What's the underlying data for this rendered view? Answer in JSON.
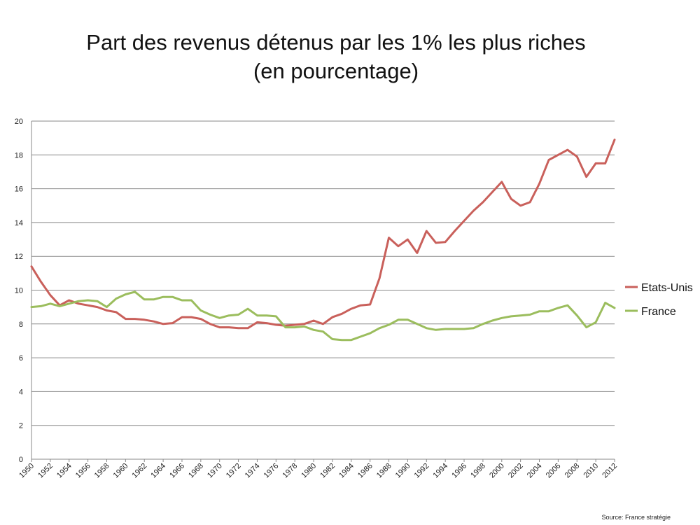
{
  "chart_data": {
    "type": "line",
    "title": "Part des revenus détenus par les 1% les plus riches",
    "subtitle": "(en pourcentage)",
    "xlabel": "",
    "ylabel": "",
    "ylim": [
      0,
      20
    ],
    "yticks": [
      0,
      2,
      4,
      6,
      8,
      10,
      12,
      14,
      16,
      18,
      20
    ],
    "xlim": [
      1950,
      2012
    ],
    "x_tick_labels": [
      "1950",
      "1952",
      "1954",
      "1956",
      "1958",
      "1960",
      "1962",
      "1964",
      "1966",
      "1968",
      "1970",
      "1972",
      "1974",
      "1976",
      "1978",
      "1980",
      "1982",
      "1984",
      "1986",
      "1988",
      "1990",
      "1992",
      "1994",
      "1996",
      "1998",
      "2000",
      "2002",
      "2004",
      "2006",
      "2008",
      "2010",
      "2012"
    ],
    "grid": true,
    "legend_position": "right",
    "x": [
      1950,
      1951,
      1952,
      1953,
      1954,
      1955,
      1956,
      1957,
      1958,
      1959,
      1960,
      1961,
      1962,
      1963,
      1964,
      1965,
      1966,
      1967,
      1968,
      1969,
      1970,
      1971,
      1972,
      1973,
      1974,
      1975,
      1976,
      1977,
      1978,
      1979,
      1980,
      1981,
      1982,
      1983,
      1984,
      1985,
      1986,
      1987,
      1988,
      1989,
      1990,
      1991,
      1992,
      1993,
      1994,
      1995,
      1996,
      1997,
      1998,
      1999,
      2000,
      2001,
      2002,
      2003,
      2004,
      2005,
      2006,
      2007,
      2008,
      2009,
      2010,
      2011,
      2012
    ],
    "series": [
      {
        "name": "Etats-Unis",
        "color": "#c9605b",
        "values": [
          11.4,
          10.5,
          9.7,
          9.1,
          9.4,
          9.2,
          9.1,
          9.0,
          8.8,
          8.7,
          8.3,
          8.3,
          8.25,
          8.15,
          8.0,
          8.05,
          8.4,
          8.4,
          8.3,
          8.0,
          7.8,
          7.8,
          7.75,
          7.75,
          8.1,
          8.05,
          7.95,
          7.9,
          7.95,
          8.0,
          8.2,
          8.0,
          8.4,
          8.6,
          8.9,
          9.1,
          9.15,
          10.7,
          13.1,
          12.6,
          13.0,
          12.2,
          13.5,
          12.8,
          12.85,
          13.5,
          14.1,
          14.7,
          15.2,
          15.8,
          16.4,
          15.4,
          15.0,
          15.2,
          16.3,
          17.7,
          18.0,
          18.3,
          17.9,
          16.7,
          17.5,
          17.5,
          18.9
        ]
      },
      {
        "name": "France",
        "color": "#9bbd5d",
        "values": [
          9.0,
          9.05,
          9.2,
          9.05,
          9.2,
          9.35,
          9.4,
          9.35,
          9.0,
          9.5,
          9.75,
          9.9,
          9.45,
          9.45,
          9.6,
          9.6,
          9.4,
          9.4,
          8.8,
          8.55,
          8.35,
          8.5,
          8.55,
          8.9,
          8.5,
          8.5,
          8.45,
          7.8,
          7.8,
          7.85,
          7.65,
          7.55,
          7.1,
          7.05,
          7.05,
          7.25,
          7.45,
          7.75,
          7.95,
          8.25,
          8.25,
          8.0,
          7.75,
          7.65,
          7.7,
          7.7,
          7.7,
          7.75,
          8.0,
          8.2,
          8.35,
          8.45,
          8.5,
          8.55,
          8.75,
          8.75,
          8.95,
          9.1,
          8.5,
          7.8,
          8.1,
          9.25,
          8.95
        ]
      }
    ],
    "source": "Source: France stratégie"
  }
}
